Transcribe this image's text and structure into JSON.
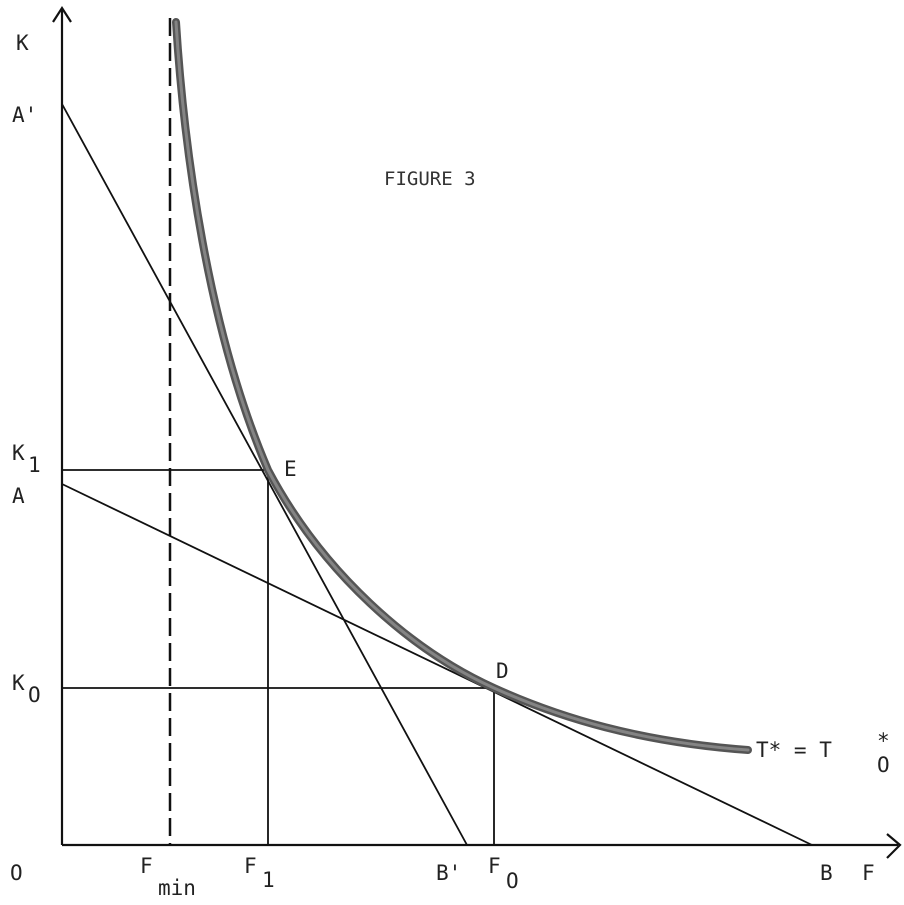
{
  "figure": {
    "title": "FIGURE 3",
    "y_axis_label": "K",
    "x_axis_label": "F",
    "origin_label": "O",
    "labels": {
      "a_prime": "A'",
      "a": "A",
      "k1_main": "K",
      "k1_sub": "1",
      "k0_main": "K",
      "k0_sub": "O",
      "f_min_main": "F",
      "f_min_sub": "min",
      "f1_main": "F",
      "f1_sub": "1",
      "b_prime": "B'",
      "f0_main": "F",
      "f0_sub": "O",
      "b": "B",
      "e": "E",
      "d": "D",
      "curve_label_lhs": "T* = T",
      "curve_label_sup": "*",
      "curve_label_sub": "O"
    }
  }
}
